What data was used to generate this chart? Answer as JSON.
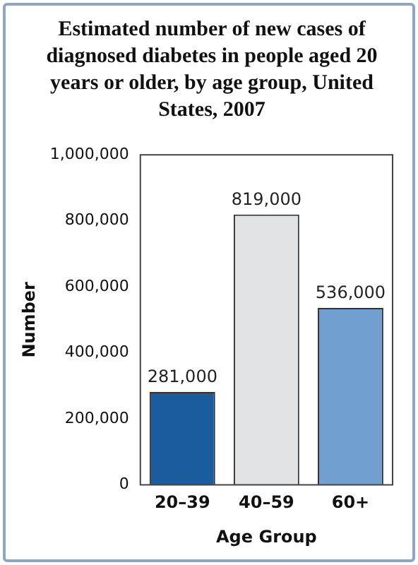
{
  "chart_data": {
    "type": "bar",
    "title": "Estimated number of new cases of diagnosed diabetes in people aged 20 years or older, by age group, United States, 2007",
    "xlabel": "Age Group",
    "ylabel": "Number",
    "categories": [
      "20–39",
      "40–59",
      "60+"
    ],
    "values": [
      281000,
      819000,
      536000
    ],
    "value_labels": [
      "281,000",
      "819,000",
      "536,000"
    ],
    "colors": [
      "#1a5c9e",
      "#e2e3e5",
      "#709fd0"
    ],
    "ylim": [
      0,
      1000000
    ],
    "yticks": [
      0,
      {
        "value": 200000,
        "label": "200,000"
      },
      {
        "value": 400000,
        "label": "400,000"
      },
      {
        "value": 600000,
        "label": "600,000"
      },
      {
        "value": 800000,
        "label": "800,000"
      },
      {
        "value": 1000000,
        "label": "1,000,000"
      }
    ],
    "grid": false,
    "legend": false
  }
}
